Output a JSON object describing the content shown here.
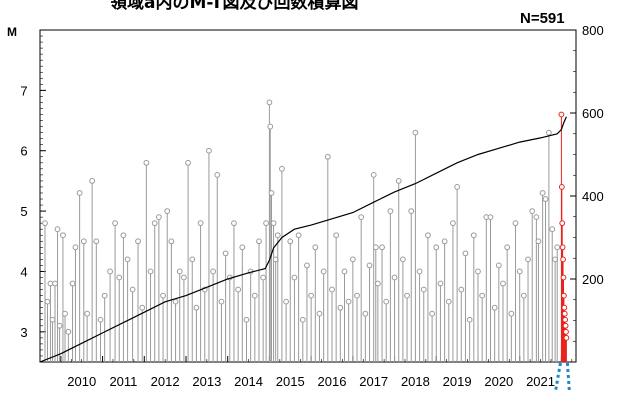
{
  "chart_data": {
    "type": "stem+cumulative",
    "title": "領域a内のM-T図及び回数積算図",
    "count_label": "N=591",
    "left_axis": {
      "title": "M",
      "range": [
        2.5,
        8.0
      ],
      "ticks": [
        3,
        4,
        5,
        6,
        7
      ]
    },
    "right_axis": {
      "range": [
        0,
        800
      ],
      "ticks": [
        200,
        400,
        600,
        800
      ]
    },
    "x_axis": {
      "range": [
        2009.5,
        2022.35
      ],
      "year_labels": [
        "2010",
        "2011",
        "2012",
        "2013",
        "2014",
        "2015",
        "2016",
        "2017",
        "2018",
        "2019",
        "2020",
        "2021"
      ]
    },
    "colors": {
      "past_events": "#9a9a9a",
      "recent_events": "#e8231e",
      "cumulative": "#000000",
      "highlight_dotted": "#1f86c8"
    },
    "series": [
      {
        "kind": "stem",
        "color": "#9a9a9a",
        "points": [
          [
            2009.62,
            4.8
          ],
          [
            2009.68,
            3.5
          ],
          [
            2009.75,
            3.8
          ],
          [
            2009.8,
            3.2
          ],
          [
            2009.86,
            3.8
          ],
          [
            2009.92,
            4.7
          ],
          [
            2009.97,
            3.1
          ],
          [
            2010.05,
            4.6
          ],
          [
            2010.1,
            3.3
          ],
          [
            2010.18,
            3.0
          ],
          [
            2010.28,
            3.8
          ],
          [
            2010.35,
            4.4
          ],
          [
            2010.45,
            5.3
          ],
          [
            2010.55,
            4.5
          ],
          [
            2010.63,
            3.3
          ],
          [
            2010.75,
            5.5
          ],
          [
            2010.85,
            4.5
          ],
          [
            2010.95,
            3.2
          ],
          [
            2011.05,
            3.6
          ],
          [
            2011.18,
            4.0
          ],
          [
            2011.3,
            4.8
          ],
          [
            2011.4,
            3.9
          ],
          [
            2011.5,
            4.6
          ],
          [
            2011.6,
            4.2
          ],
          [
            2011.72,
            3.7
          ],
          [
            2011.85,
            4.5
          ],
          [
            2011.95,
            3.4
          ],
          [
            2012.05,
            5.8
          ],
          [
            2012.15,
            4.0
          ],
          [
            2012.25,
            4.8
          ],
          [
            2012.35,
            4.9
          ],
          [
            2012.45,
            3.6
          ],
          [
            2012.55,
            5.0
          ],
          [
            2012.65,
            4.5
          ],
          [
            2012.75,
            3.5
          ],
          [
            2012.85,
            4.0
          ],
          [
            2012.95,
            3.9
          ],
          [
            2013.05,
            5.8
          ],
          [
            2013.15,
            4.2
          ],
          [
            2013.25,
            3.4
          ],
          [
            2013.35,
            4.8
          ],
          [
            2013.45,
            3.7
          ],
          [
            2013.55,
            6.0
          ],
          [
            2013.65,
            4.0
          ],
          [
            2013.75,
            5.6
          ],
          [
            2013.85,
            3.5
          ],
          [
            2013.95,
            4.3
          ],
          [
            2014.05,
            3.9
          ],
          [
            2014.15,
            4.8
          ],
          [
            2014.25,
            3.7
          ],
          [
            2014.35,
            4.4
          ],
          [
            2014.45,
            3.2
          ],
          [
            2014.55,
            4.0
          ],
          [
            2014.65,
            3.6
          ],
          [
            2014.75,
            4.5
          ],
          [
            2014.85,
            3.9
          ],
          [
            2014.92,
            4.8
          ],
          [
            2015.0,
            6.8
          ],
          [
            2015.02,
            6.4
          ],
          [
            2015.05,
            5.3
          ],
          [
            2015.1,
            4.8
          ],
          [
            2015.15,
            4.2
          ],
          [
            2015.2,
            4.6
          ],
          [
            2015.3,
            5.7
          ],
          [
            2015.4,
            3.5
          ],
          [
            2015.5,
            4.5
          ],
          [
            2015.6,
            3.9
          ],
          [
            2015.7,
            4.6
          ],
          [
            2015.8,
            3.2
          ],
          [
            2015.9,
            4.1
          ],
          [
            2016.0,
            3.6
          ],
          [
            2016.1,
            4.4
          ],
          [
            2016.2,
            3.3
          ],
          [
            2016.3,
            4.0
          ],
          [
            2016.4,
            5.9
          ],
          [
            2016.5,
            3.7
          ],
          [
            2016.6,
            4.6
          ],
          [
            2016.7,
            3.4
          ],
          [
            2016.8,
            4.0
          ],
          [
            2016.9,
            3.5
          ],
          [
            2017.0,
            4.2
          ],
          [
            2017.1,
            3.6
          ],
          [
            2017.2,
            4.9
          ],
          [
            2017.3,
            3.3
          ],
          [
            2017.4,
            4.1
          ],
          [
            2017.5,
            5.6
          ],
          [
            2017.55,
            4.4
          ],
          [
            2017.6,
            3.8
          ],
          [
            2017.7,
            4.4
          ],
          [
            2017.8,
            3.5
          ],
          [
            2017.9,
            5.0
          ],
          [
            2018.0,
            3.9
          ],
          [
            2018.1,
            5.5
          ],
          [
            2018.2,
            4.2
          ],
          [
            2018.3,
            3.6
          ],
          [
            2018.4,
            5.0
          ],
          [
            2018.5,
            6.3
          ],
          [
            2018.6,
            4.0
          ],
          [
            2018.7,
            3.7
          ],
          [
            2018.8,
            4.6
          ],
          [
            2018.9,
            3.3
          ],
          [
            2019.0,
            4.4
          ],
          [
            2019.1,
            3.8
          ],
          [
            2019.2,
            4.5
          ],
          [
            2019.3,
            3.5
          ],
          [
            2019.4,
            4.8
          ],
          [
            2019.5,
            5.4
          ],
          [
            2019.6,
            3.7
          ],
          [
            2019.7,
            4.3
          ],
          [
            2019.8,
            3.2
          ],
          [
            2019.9,
            4.6
          ],
          [
            2020.0,
            4.0
          ],
          [
            2020.1,
            3.6
          ],
          [
            2020.2,
            4.9
          ],
          [
            2020.3,
            4.9
          ],
          [
            2020.4,
            3.4
          ],
          [
            2020.5,
            4.1
          ],
          [
            2020.6,
            3.8
          ],
          [
            2020.7,
            4.4
          ],
          [
            2020.8,
            3.3
          ],
          [
            2020.9,
            4.8
          ],
          [
            2021.0,
            4.0
          ],
          [
            2021.1,
            3.6
          ],
          [
            2021.2,
            4.2
          ],
          [
            2021.3,
            5.0
          ],
          [
            2021.4,
            4.9
          ],
          [
            2021.45,
            4.5
          ],
          [
            2021.55,
            5.3
          ],
          [
            2021.62,
            5.2
          ],
          [
            2021.7,
            6.3
          ],
          [
            2021.78,
            4.7
          ],
          [
            2021.85,
            4.2
          ],
          [
            2021.9,
            4.4
          ]
        ]
      },
      {
        "kind": "stem",
        "color": "#e8231e",
        "points": [
          [
            2022.0,
            6.6
          ],
          [
            2022.01,
            5.4
          ],
          [
            2022.02,
            4.8
          ],
          [
            2022.03,
            4.4
          ],
          [
            2022.04,
            4.2
          ],
          [
            2022.05,
            3.9
          ],
          [
            2022.06,
            3.6
          ],
          [
            2022.07,
            3.4
          ],
          [
            2022.08,
            3.3
          ],
          [
            2022.09,
            3.2
          ],
          [
            2022.1,
            3.1
          ],
          [
            2022.11,
            3.0
          ],
          [
            2022.12,
            2.9
          ]
        ]
      },
      {
        "kind": "cumulative",
        "color": "#000000",
        "points": [
          [
            2009.5,
            0
          ],
          [
            2010.0,
            20
          ],
          [
            2010.5,
            45
          ],
          [
            2011.0,
            70
          ],
          [
            2011.5,
            95
          ],
          [
            2012.0,
            120
          ],
          [
            2012.5,
            145
          ],
          [
            2013.0,
            160
          ],
          [
            2013.5,
            180
          ],
          [
            2014.0,
            200
          ],
          [
            2014.5,
            215
          ],
          [
            2014.9,
            225
          ],
          [
            2015.0,
            245
          ],
          [
            2015.1,
            275
          ],
          [
            2015.3,
            300
          ],
          [
            2015.6,
            320
          ],
          [
            2016.0,
            330
          ],
          [
            2016.5,
            345
          ],
          [
            2017.0,
            360
          ],
          [
            2017.5,
            385
          ],
          [
            2018.0,
            410
          ],
          [
            2018.5,
            430
          ],
          [
            2019.0,
            455
          ],
          [
            2019.5,
            480
          ],
          [
            2020.0,
            500
          ],
          [
            2020.5,
            515
          ],
          [
            2021.0,
            530
          ],
          [
            2021.5,
            540
          ],
          [
            2021.9,
            550
          ],
          [
            2022.0,
            560
          ],
          [
            2022.05,
            575
          ],
          [
            2022.12,
            591
          ]
        ]
      }
    ]
  }
}
